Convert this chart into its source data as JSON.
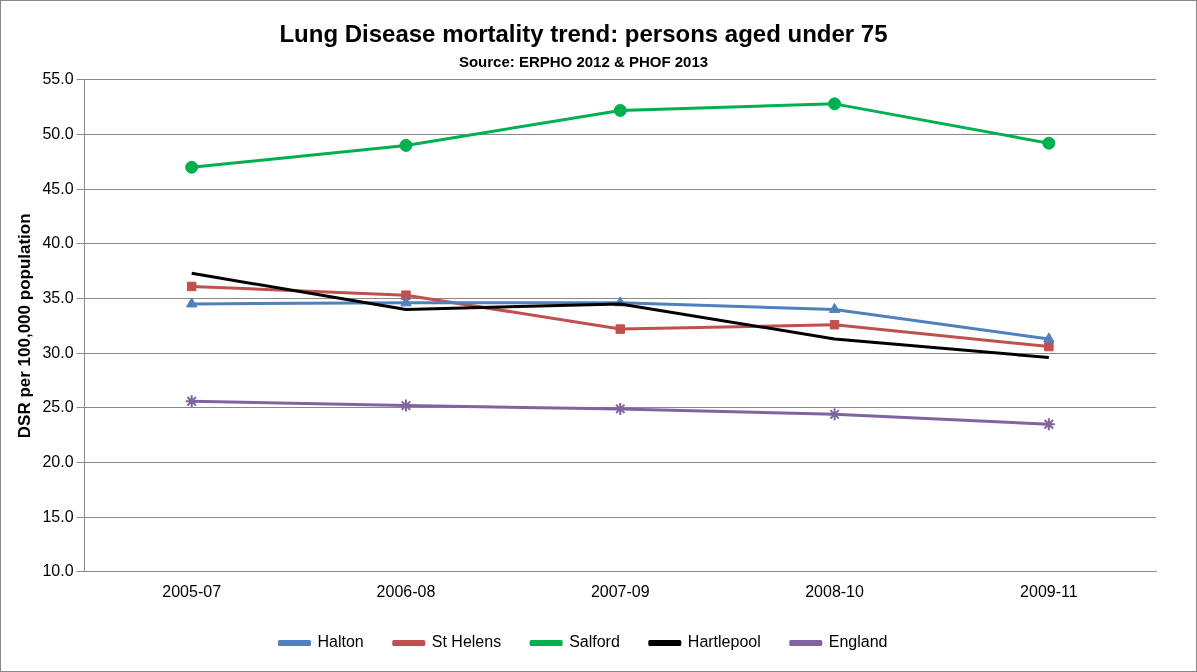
{
  "chart_data": {
    "type": "line",
    "title": "Lung Disease mortality trend: persons aged under 75",
    "subtitle": "Source: ERPHO 2012 & PHOF 2013",
    "ylabel": "DSR per 100,000 population",
    "categories": [
      "2005-07",
      "2006-08",
      "2007-09",
      "2008-10",
      "2009-11"
    ],
    "series": [
      {
        "name": "Halton",
        "color": "#4f81bd",
        "marker": "triangle",
        "values": [
          34.5,
          34.6,
          34.6,
          34.0,
          31.3
        ]
      },
      {
        "name": "St Helens",
        "color": "#c0504d",
        "marker": "square",
        "values": [
          36.1,
          35.3,
          32.2,
          32.6,
          30.6
        ]
      },
      {
        "name": "Salford",
        "color": "#00b050",
        "marker": "circle",
        "values": [
          47.0,
          49.0,
          52.2,
          52.8,
          49.2
        ]
      },
      {
        "name": "Hartlepool",
        "color": "#000000",
        "marker": "none",
        "values": [
          37.3,
          34.0,
          34.5,
          31.3,
          29.6
        ]
      },
      {
        "name": "England",
        "color": "#8064a2",
        "marker": "cross",
        "values": [
          25.6,
          25.2,
          24.9,
          24.4,
          23.5
        ]
      }
    ],
    "ylim": [
      10,
      55
    ],
    "yticks": [
      {
        "value": 10,
        "label": "10.0"
      },
      {
        "value": 15,
        "label": "15.0"
      },
      {
        "value": 20,
        "label": "20.0"
      },
      {
        "value": 25,
        "label": "25.0"
      },
      {
        "value": 30,
        "label": "30.0"
      },
      {
        "value": 35,
        "label": "35.0"
      },
      {
        "value": 40,
        "label": "40.0"
      },
      {
        "value": 45,
        "label": "45.0"
      },
      {
        "value": 50,
        "label": "50.0"
      },
      {
        "value": 55,
        "label": "55.0"
      }
    ],
    "grid": "y",
    "legend": "bottom"
  }
}
